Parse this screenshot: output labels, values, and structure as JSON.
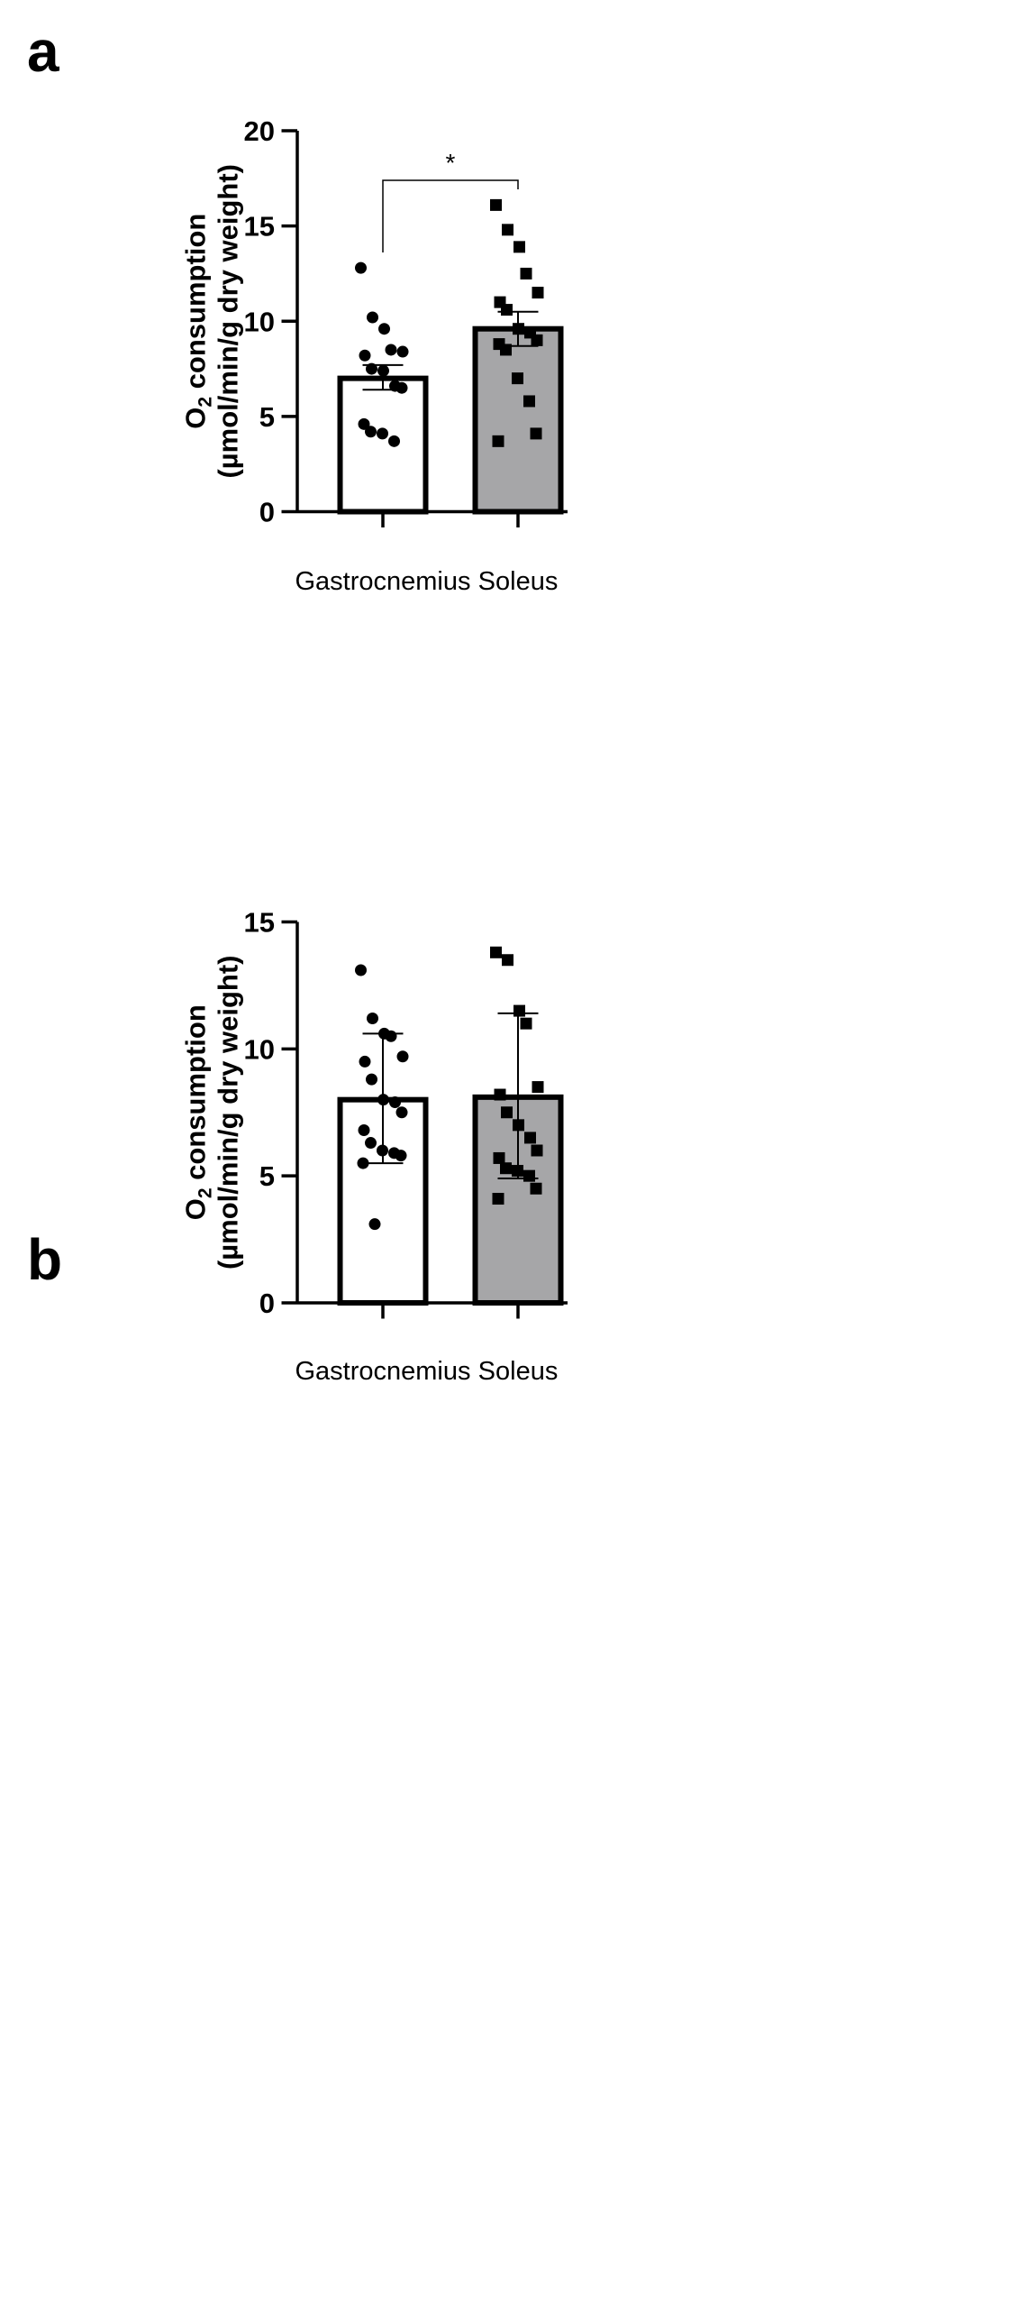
{
  "panels": [
    {
      "letter": "a",
      "significance": "*"
    },
    {
      "letter": "b",
      "significance": ""
    }
  ],
  "chart_data": [
    {
      "type": "bar",
      "panel": "a",
      "ylabel_line1_pre": "O",
      "ylabel_line1_sub": "2",
      "ylabel_line1_post": " consumption",
      "ylabel_line2": "(µmol/min/g dry weight)",
      "ylim": [
        0,
        20
      ],
      "yticks": [
        "0",
        "5",
        "10",
        "15",
        "20"
      ],
      "categories": [
        "Gastrocnemius",
        "Soleus"
      ],
      "bar_colors": [
        "#ffffff",
        "#a6a6a8"
      ],
      "series": [
        {
          "mean": 7.0,
          "err_low": 6.4,
          "err_high": 7.7,
          "points": [
            12.8,
            10.2,
            9.6,
            8.5,
            8.4,
            8.2,
            7.5,
            7.4,
            6.6,
            6.5,
            4.6,
            4.2,
            4.1,
            3.7
          ],
          "marker": "circle"
        },
        {
          "mean": 9.6,
          "err_low": 8.7,
          "err_high": 10.5,
          "points": [
            16.1,
            14.8,
            13.9,
            12.5,
            11.5,
            11.0,
            10.6,
            9.6,
            9.4,
            9.0,
            8.8,
            8.5,
            7.0,
            5.8,
            4.1,
            3.7
          ],
          "marker": "square"
        }
      ],
      "significance_bracket": "*"
    },
    {
      "type": "bar",
      "panel": "b",
      "ylabel_line1_pre": "O",
      "ylabel_line1_sub": "2",
      "ylabel_line1_post": " consumption",
      "ylabel_line2": "(µmol/min/g dry weight)",
      "ylim": [
        0,
        15
      ],
      "yticks": [
        "0",
        "5",
        "10",
        "15"
      ],
      "categories": [
        "Gastrocnemius",
        "Soleus"
      ],
      "bar_colors": [
        "#ffffff",
        "#a6a6a8"
      ],
      "series": [
        {
          "mean": 8.0,
          "err_low": 5.5,
          "err_high": 10.6,
          "points": [
            13.1,
            11.2,
            10.6,
            10.5,
            9.7,
            9.5,
            8.8,
            8.0,
            7.9,
            7.5,
            6.8,
            6.3,
            6.0,
            5.9,
            5.8,
            5.5,
            3.1
          ],
          "marker": "circle"
        },
        {
          "mean": 8.1,
          "err_low": 4.9,
          "err_high": 11.4,
          "points": [
            13.8,
            13.5,
            11.5,
            11.0,
            8.5,
            8.2,
            7.5,
            7.0,
            6.5,
            6.0,
            5.7,
            5.3,
            5.2,
            5.0,
            4.5,
            4.1
          ],
          "marker": "square"
        }
      ],
      "significance_bracket": ""
    }
  ]
}
